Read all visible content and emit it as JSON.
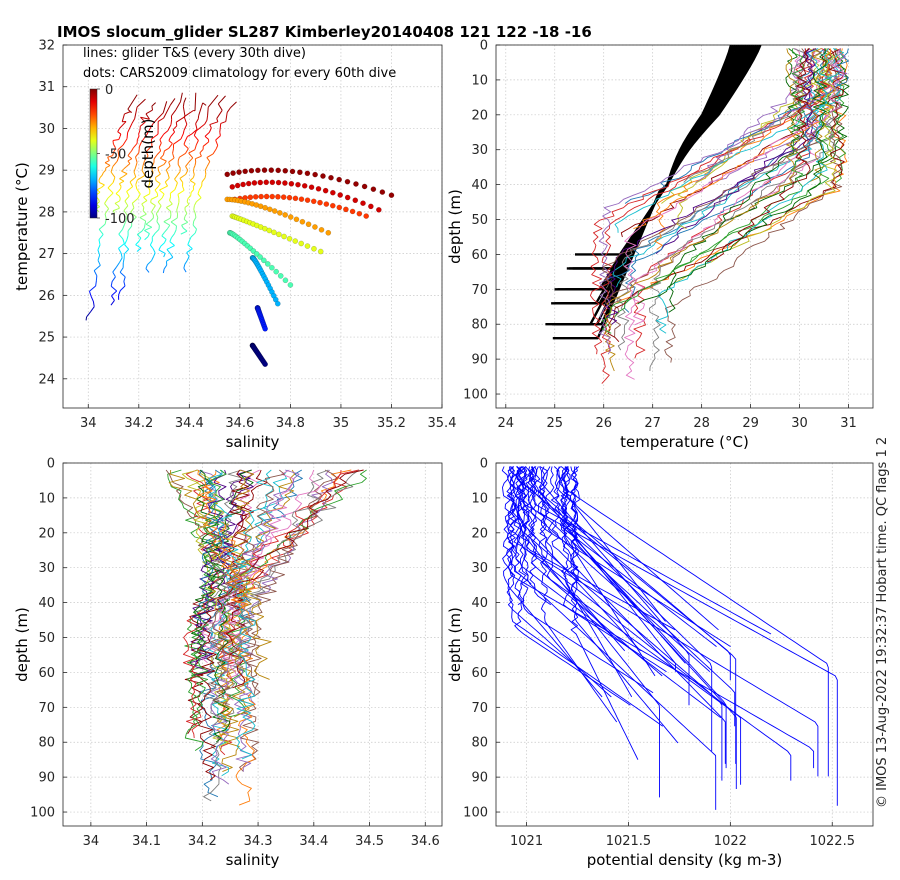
{
  "figure": {
    "title": "IMOS slocum_glider SL287 Kimberley20140408 121  122  -18  -16",
    "side_note": "© IMOS 13-Aug-2022 19:32:37 Hobart time. QC flags 1  2"
  },
  "chart_data": [
    {
      "id": "ts",
      "type": "scatter",
      "xlabel": "salinity",
      "ylabel": "temperature (°C)",
      "xlim": [
        33.9,
        35.4
      ],
      "ylim": [
        23.3,
        32
      ],
      "xticks": [
        34,
        34.2,
        34.4,
        34.6,
        34.8,
        35,
        35.2,
        35.4
      ],
      "yticks": [
        24,
        25,
        26,
        27,
        28,
        29,
        30,
        31,
        32
      ],
      "grid": true,
      "annotations": [
        "lines: glider T&S (every 30th dive)",
        "dots: CARS2009 climatology for every 60th dive"
      ],
      "colorbar": {
        "label": "depth(m)",
        "ticks": [
          0,
          -50,
          -100
        ],
        "range": [
          -100,
          0
        ]
      },
      "lines_salinity": [
        34.08,
        34.12,
        34.16,
        34.2,
        34.23,
        34.27,
        34.3,
        34.33,
        34.37,
        34.4,
        34.44,
        34.48
      ],
      "dots": [
        {
          "start": [
            34.55,
            28.9
          ],
          "end": [
            35.2,
            28.4
          ],
          "peak": [
            34.8,
            29.25
          ],
          "depth": -2
        },
        {
          "start": [
            34.57,
            28.6
          ],
          "end": [
            35.15,
            28.05
          ],
          "peak": [
            34.8,
            28.98
          ],
          "depth": -8
        },
        {
          "start": [
            34.58,
            28.3
          ],
          "end": [
            35.1,
            27.9
          ],
          "peak": [
            34.8,
            28.55
          ],
          "depth": -18
        },
        {
          "start": [
            34.55,
            28.3
          ],
          "end": [
            34.95,
            27.5
          ],
          "peak": [
            34.65,
            28.3
          ],
          "depth": -28
        },
        {
          "start": [
            34.57,
            27.9
          ],
          "end": [
            34.92,
            27.05
          ],
          "peak": [
            34.62,
            27.8
          ],
          "depth": -40
        },
        {
          "start": [
            34.56,
            27.5
          ],
          "end": [
            34.8,
            26.25
          ],
          "peak": [
            34.58,
            27.5
          ],
          "depth": -55
        },
        {
          "start": [
            34.65,
            26.9
          ],
          "end": [
            34.75,
            25.8
          ],
          "peak": [
            34.66,
            26.9
          ],
          "depth": -70
        },
        {
          "start": [
            34.67,
            25.7
          ],
          "end": [
            34.7,
            25.2
          ],
          "peak": [
            34.67,
            25.7
          ],
          "depth": -85
        },
        {
          "start": [
            34.65,
            24.8
          ],
          "end": [
            34.7,
            24.35
          ],
          "peak": [
            34.65,
            24.8
          ],
          "depth": -100
        }
      ]
    },
    {
      "id": "temp",
      "type": "line",
      "xlabel": "temperature (°C)",
      "ylabel": "depth (m)",
      "xlim": [
        23.8,
        31.5
      ],
      "ylim": [
        104,
        0
      ],
      "xticks": [
        24,
        25,
        26,
        27,
        28,
        29,
        30,
        31
      ],
      "yticks": [
        0,
        10,
        20,
        30,
        40,
        50,
        60,
        70,
        80,
        90,
        100
      ],
      "grid": true,
      "climatology_bundle": {
        "surface_temp": [
          28.6,
          29.2
        ],
        "bottom_temp": [
          24.4,
          25.5
        ]
      }
    },
    {
      "id": "sal",
      "type": "line",
      "xlabel": "salinity",
      "ylabel": "depth (m)",
      "xlim": [
        33.95,
        34.63
      ],
      "ylim": [
        104,
        0
      ],
      "xticks": [
        34,
        34.1,
        34.2,
        34.3,
        34.4,
        34.5,
        34.6
      ],
      "yticks": [
        0,
        10,
        20,
        30,
        40,
        50,
        60,
        70,
        80,
        90,
        100
      ],
      "grid": true
    },
    {
      "id": "dens",
      "type": "line",
      "xlabel": "potential density (kg m-3)",
      "ylabel": "depth (m)",
      "xlim": [
        1020.85,
        1022.7
      ],
      "ylim": [
        104,
        0
      ],
      "xticks": [
        1021,
        1021.5,
        1022,
        1022.5
      ],
      "yticks": [
        0,
        10,
        20,
        30,
        40,
        50,
        60,
        70,
        80,
        90,
        100
      ],
      "grid": true
    }
  ]
}
